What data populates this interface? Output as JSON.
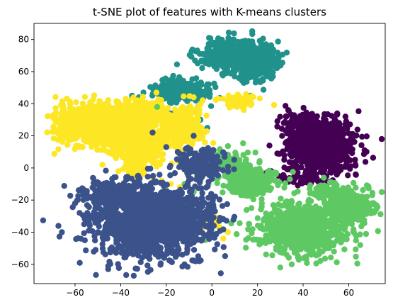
{
  "chart_data": {
    "type": "scatter",
    "title": "t-SNE plot of features with K-means clusters",
    "xlabel": "",
    "ylabel": "",
    "xlim": [
      -78,
      76
    ],
    "ylim": [
      -72,
      90
    ],
    "xticks": [
      -60,
      -40,
      -20,
      0,
      20,
      40,
      60
    ],
    "yticks": [
      -60,
      -40,
      -20,
      0,
      20,
      40,
      60,
      80
    ],
    "grid": false,
    "legend": null,
    "series": [
      {
        "cluster": 0,
        "color": "#440154",
        "points_count": 1000,
        "blobs": [
          {
            "cx": 47,
            "cy": 14,
            "sx": 7.5,
            "sy": 8,
            "n": 820
          },
          {
            "cx": 40,
            "cy": 28,
            "sx": 4,
            "sy": 3,
            "n": 120
          },
          {
            "cx": 41,
            "cy": -6,
            "sx": 5,
            "sy": 3,
            "n": 60
          }
        ],
        "extra_points": [
          [
            24,
            -3
          ],
          [
            22,
            -5
          ],
          [
            20,
            -3
          ],
          [
            26,
            -2
          ],
          [
            23,
            -8
          ]
        ]
      },
      {
        "cluster": 1,
        "color": "#3b528b",
        "points_count": 1900,
        "blobs": [
          {
            "cx": -28,
            "cy": -33,
            "sx": 12,
            "sy": 11,
            "n": 1400
          },
          {
            "cx": -45,
            "cy": -17,
            "sx": 6,
            "sy": 5,
            "n": 160
          },
          {
            "cx": -5,
            "cy": 2,
            "sx": 5,
            "sy": 5,
            "n": 200
          },
          {
            "cx": -8,
            "cy": -30,
            "sx": 6,
            "sy": 8,
            "n": 140
          }
        ],
        "extra_points": [
          [
            -12,
            -60
          ],
          [
            -18,
            -58
          ],
          [
            -6,
            -55
          ],
          [
            -20,
            13
          ],
          [
            -15,
            10
          ],
          [
            -26,
            22
          ],
          [
            -8,
            20
          ],
          [
            -60,
            -22
          ],
          [
            -58,
            -28
          ],
          [
            -56,
            -35
          ],
          [
            -50,
            -40
          ]
        ]
      },
      {
        "cluster": 2,
        "color": "#21918c",
        "points_count": 900,
        "blobs": [
          {
            "cx": 11,
            "cy": 70,
            "sx": 8,
            "sy": 5,
            "n": 500
          },
          {
            "cx": -13,
            "cy": 48,
            "sx": 6,
            "sy": 3.5,
            "n": 230
          },
          {
            "cx": 20,
            "cy": 62,
            "sx": 5,
            "sy": 4,
            "n": 170
          }
        ],
        "extra_points": [
          [
            -30,
            47
          ],
          [
            -26,
            46
          ],
          [
            -11,
            34
          ],
          [
            -18,
            34
          ],
          [
            -6,
            38
          ],
          [
            13,
            42
          ],
          [
            17,
            45
          ],
          [
            -12,
            18
          ],
          [
            -20,
            22
          ],
          [
            -28,
            28
          ],
          [
            -24,
            32
          ],
          [
            -5,
            30
          ],
          [
            -15,
            30
          ],
          [
            -2,
            25
          ],
          [
            -32,
            44
          ],
          [
            -35,
            45
          ],
          [
            -8,
            27
          ]
        ]
      },
      {
        "cluster": 3,
        "color": "#5ec962",
        "points_count": 1400,
        "blobs": [
          {
            "cx": 40,
            "cy": -38,
            "sx": 10,
            "sy": 8,
            "n": 750
          },
          {
            "cx": 62,
            "cy": -24,
            "sx": 5,
            "sy": 5,
            "n": 250
          },
          {
            "cx": 17,
            "cy": -8,
            "sx": 6,
            "sy": 5,
            "n": 220
          },
          {
            "cx": 8,
            "cy": 3,
            "sx": 4,
            "sy": 4,
            "n": 100
          },
          {
            "cx": 52,
            "cy": -15,
            "sx": 5,
            "sy": 3,
            "n": 80
          }
        ],
        "extra_points": [
          [
            -27,
            -12
          ],
          [
            -20,
            -14
          ],
          [
            -15,
            -15
          ],
          [
            -12,
            -10
          ],
          [
            -24,
            38
          ],
          [
            -4,
            -20
          ],
          [
            -8,
            -15
          ],
          [
            0,
            -18
          ],
          [
            -5,
            -8
          ],
          [
            14,
            -15
          ],
          [
            30,
            -62
          ],
          [
            35,
            -60
          ],
          [
            -30,
            -32
          ],
          [
            0,
            -40
          ],
          [
            -3,
            -45
          ]
        ]
      },
      {
        "cluster": 4,
        "color": "#fde725",
        "points_count": 2100,
        "blobs": [
          {
            "cx": -56,
            "cy": 27,
            "sx": 6.5,
            "sy": 6,
            "n": 600
          },
          {
            "cx": -42,
            "cy": 26,
            "sx": 6,
            "sy": 6,
            "n": 550
          },
          {
            "cx": -32,
            "cy": 12,
            "sx": 5,
            "sy": 6,
            "n": 300
          },
          {
            "cx": -14,
            "cy": 25,
            "sx": 5,
            "sy": 6,
            "n": 320
          },
          {
            "cx": -30,
            "cy": 35,
            "sx": 5,
            "sy": 4,
            "n": 200
          },
          {
            "cx": 12,
            "cy": 42,
            "sx": 3.5,
            "sy": 2,
            "n": 70
          },
          {
            "cx": 0,
            "cy": -34,
            "sx": 2,
            "sy": 2,
            "n": 25
          },
          {
            "cx": -33,
            "cy": -1,
            "sx": 3,
            "sy": 2,
            "n": 35
          }
        ],
        "extra_points": [
          [
            -48,
            2
          ],
          [
            -22,
            -8
          ],
          [
            -14,
            -12
          ],
          [
            -18,
            -10
          ],
          [
            -26,
            -6
          ],
          [
            7,
            -40
          ],
          [
            5,
            -44
          ],
          [
            1,
            -42
          ],
          [
            11,
            38
          ],
          [
            14,
            36
          ],
          [
            -2,
            3
          ],
          [
            -8,
            44
          ],
          [
            -41,
            -2
          ],
          [
            -37,
            -5
          ]
        ]
      }
    ]
  }
}
